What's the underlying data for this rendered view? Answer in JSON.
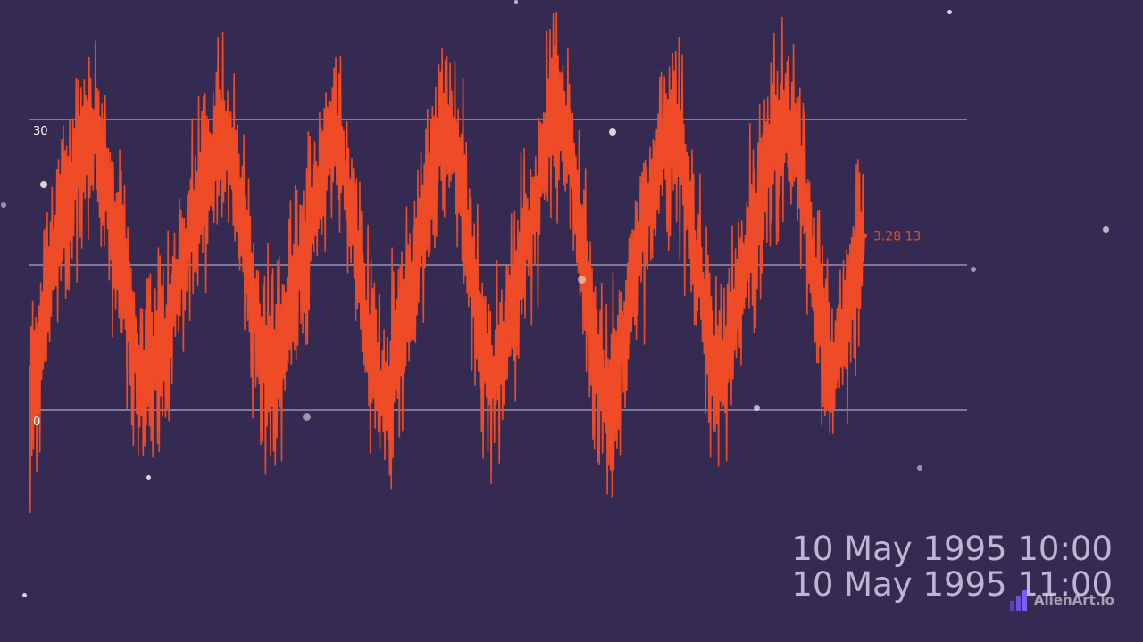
{
  "chart_data": {
    "type": "line",
    "title": "",
    "xlabel": "",
    "ylabel": "",
    "ylim": [
      0,
      30
    ],
    "y_ticks": [
      {
        "value": 0,
        "label": "0"
      },
      {
        "value": 15,
        "label": ""
      },
      {
        "value": 30,
        "label": "30"
      }
    ],
    "grid": true,
    "current": {
      "date": "10 May 1995 10:00",
      "value_text": "3.28 13"
    },
    "series": [
      {
        "color": "#ee4b26",
        "values": [
          -1,
          8,
          15,
          20,
          24,
          28,
          29,
          22,
          16,
          8,
          3,
          4,
          7,
          12,
          17,
          22,
          26,
          29,
          27,
          18,
          10,
          4,
          5,
          10,
          15,
          20,
          25,
          29,
          24,
          16,
          8,
          2,
          3,
          9,
          14,
          21,
          26,
          30,
          25,
          17,
          7,
          3,
          6,
          12,
          17,
          22,
          28,
          31,
          26,
          17,
          6,
          1,
          3,
          10,
          16,
          22,
          27,
          29,
          25,
          16,
          9,
          3,
          6,
          12,
          18,
          24,
          28,
          30,
          27,
          19,
          9,
          3,
          7,
          14,
          18
        ]
      }
    ]
  },
  "date_lines": [
    "10 May 1995 10:00",
    "10 May 1995 11:00"
  ],
  "watermark": {
    "text": "AlienArt.io",
    "logo_icon": "bar-chart-logo-icon"
  },
  "colors": {
    "background": "#352b52",
    "series": "#ee4b26",
    "grid": "#c9c4dc",
    "date_text": "#bdb6d2"
  }
}
